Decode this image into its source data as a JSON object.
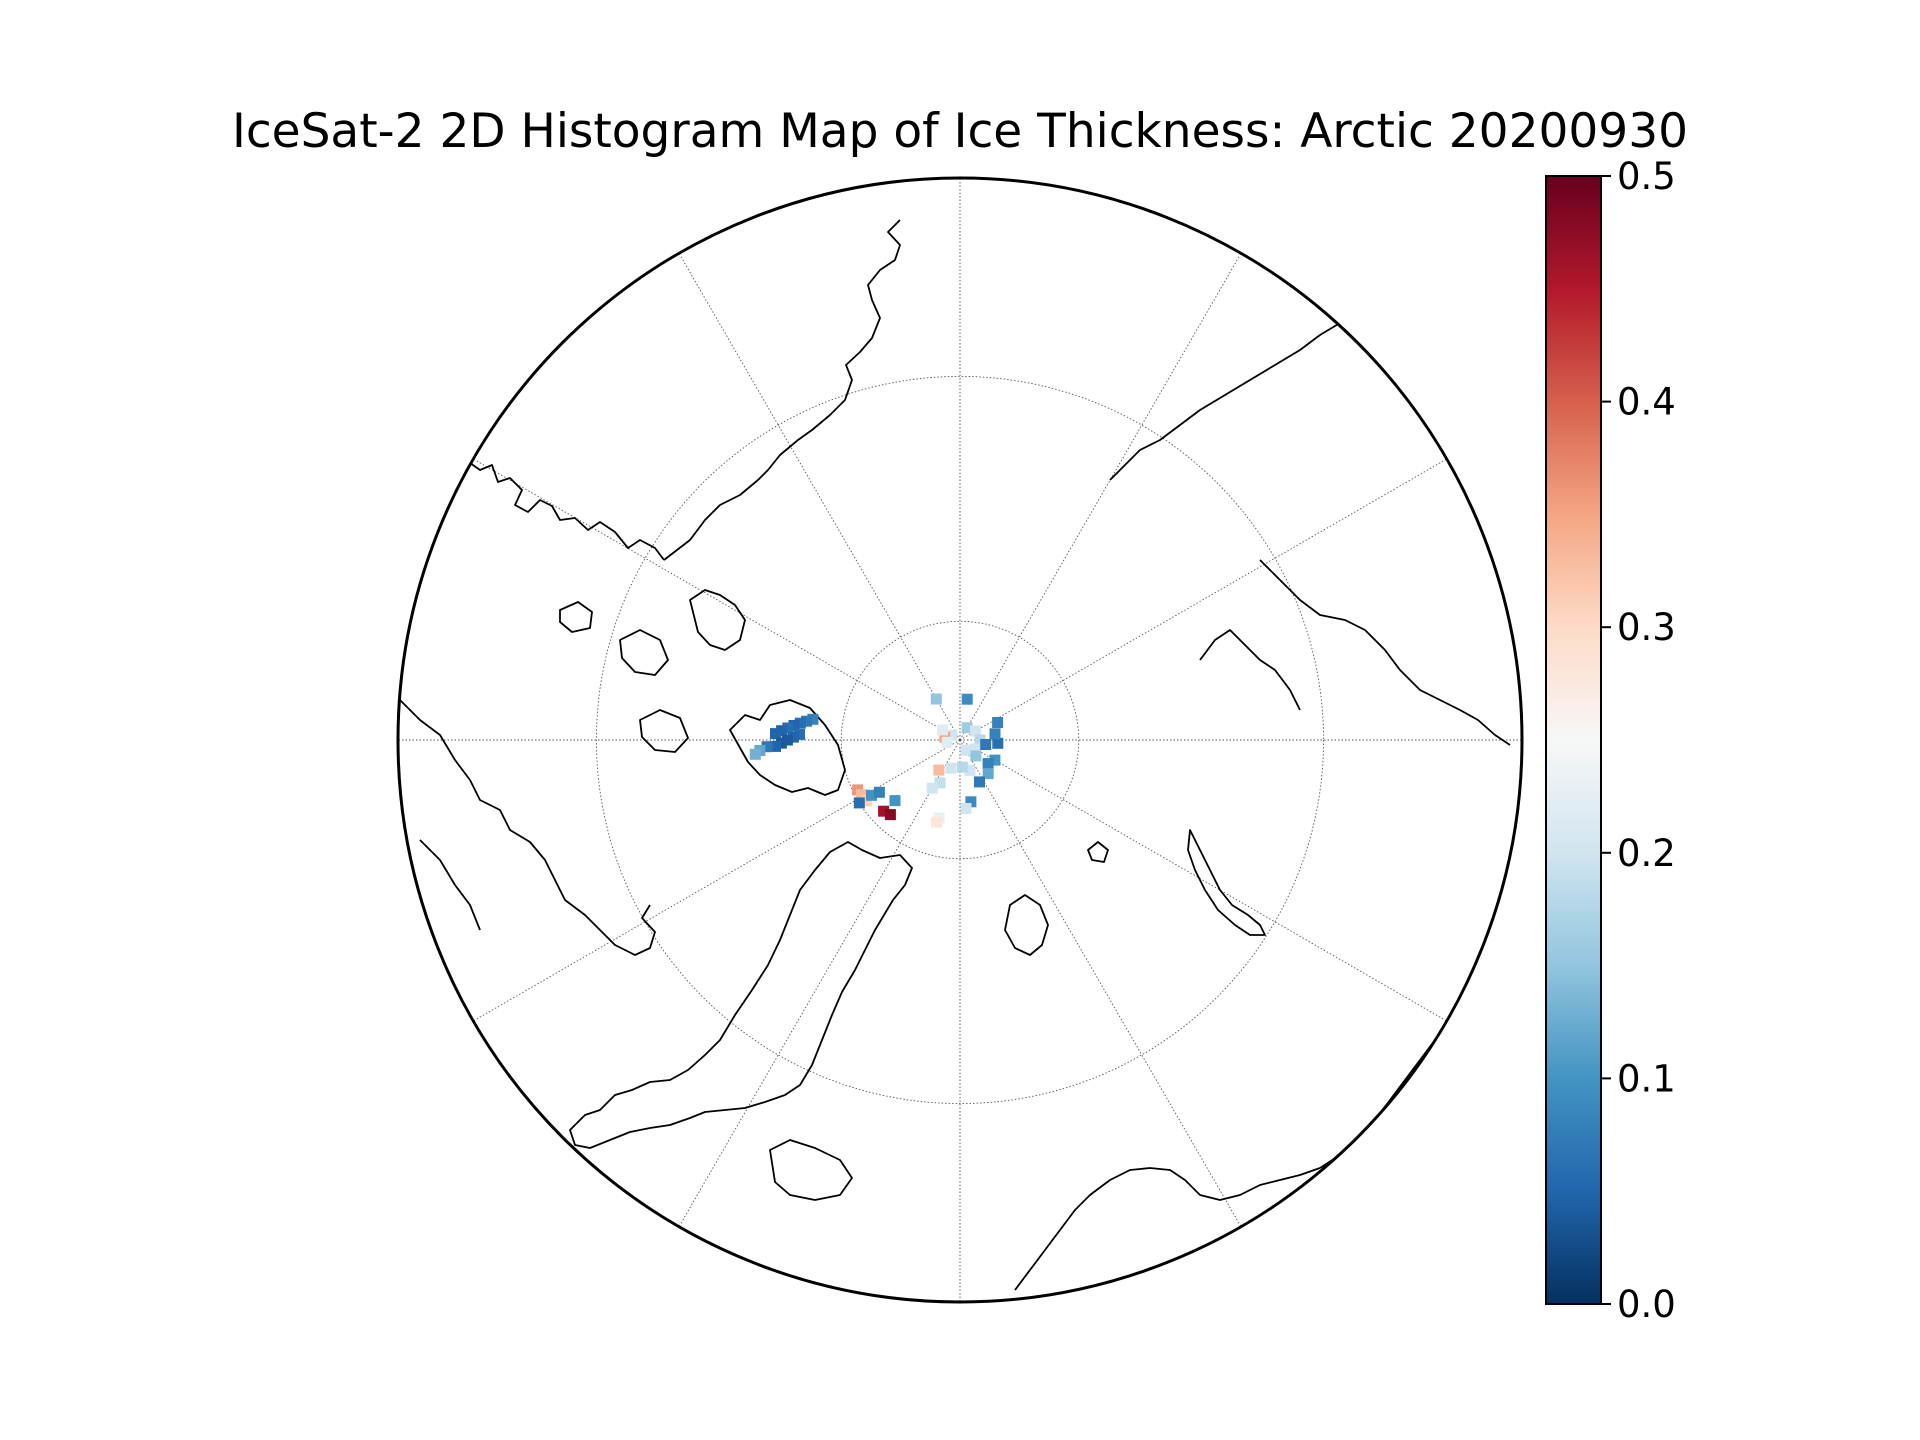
{
  "chart_data": {
    "type": "heatmap",
    "title": "IceSat-2 2D Histogram Map of Ice Thickness: Arctic 20200930",
    "projection": "north-polar-stereographic",
    "graticule": {
      "meridian_step_deg": 30,
      "parallels_deg": [
        60,
        80
      ]
    },
    "colormap": "RdBu_r",
    "colorbar": {
      "vmin": 0.0,
      "vmax": 0.5,
      "ticks": [
        0.0,
        0.1,
        0.2,
        0.3,
        0.4,
        0.5
      ],
      "tick_labels": [
        "0.0",
        "0.1",
        "0.2",
        "0.3",
        "0.4",
        "0.5"
      ],
      "placement": "right"
    },
    "cells": [
      {
        "lon": -98,
        "lat": 77.5,
        "value": 0.08
      },
      {
        "lon": -97,
        "lat": 77.0,
        "value": 0.07
      },
      {
        "lon": -96,
        "lat": 76.5,
        "value": 0.06
      },
      {
        "lon": -95,
        "lat": 76.0,
        "value": 0.05
      },
      {
        "lon": -94,
        "lat": 75.5,
        "value": 0.06
      },
      {
        "lon": -93,
        "lat": 75.0,
        "value": 0.05
      },
      {
        "lon": -92,
        "lat": 74.5,
        "value": 0.05
      },
      {
        "lon": -92,
        "lat": 76.5,
        "value": 0.06
      },
      {
        "lon": -91,
        "lat": 76.0,
        "value": 0.05
      },
      {
        "lon": -90,
        "lat": 75.5,
        "value": 0.04
      },
      {
        "lon": -89,
        "lat": 75.0,
        "value": 0.04
      },
      {
        "lon": -88,
        "lat": 74.5,
        "value": 0.05
      },
      {
        "lon": -88,
        "lat": 73.8,
        "value": 0.07
      },
      {
        "lon": -87,
        "lat": 73.2,
        "value": 0.12
      },
      {
        "lon": -86,
        "lat": 72.8,
        "value": 0.13
      },
      {
        "lon": -64,
        "lat": 80.4,
        "value": 0.36
      },
      {
        "lon": -61,
        "lat": 80.5,
        "value": 0.33
      },
      {
        "lon": -57,
        "lat": 80.6,
        "value": 0.31
      },
      {
        "lon": -58,
        "lat": 80.0,
        "value": 0.06
      },
      {
        "lon": -47,
        "lat": 81.2,
        "value": 0.46
      },
      {
        "lon": -43,
        "lat": 81.4,
        "value": 0.48
      },
      {
        "lon": -58,
        "lat": 81.2,
        "value": 0.1
      },
      {
        "lon": -57,
        "lat": 81.9,
        "value": 0.08
      },
      {
        "lon": -47,
        "lat": 82.5,
        "value": 0.1
      },
      {
        "lon": -150,
        "lat": 86.0,
        "value": 0.15
      },
      {
        "lon": 170,
        "lat": 86.5,
        "value": 0.09
      },
      {
        "lon": -120,
        "lat": 89.2,
        "value": 0.2
      },
      {
        "lon": -100,
        "lat": 88.7,
        "value": 0.35
      },
      {
        "lon": -80,
        "lat": 88.9,
        "value": 0.22
      },
      {
        "lon": -120,
        "lat": 88.3,
        "value": 0.22
      },
      {
        "lon": 150,
        "lat": 88.8,
        "value": 0.16
      },
      {
        "lon": 120,
        "lat": 88.5,
        "value": 0.2
      },
      {
        "lon": 90,
        "lat": 88.3,
        "value": 0.18
      },
      {
        "lon": 60,
        "lat": 88.5,
        "value": 0.2
      },
      {
        "lon": 30,
        "lat": 89.0,
        "value": 0.2
      },
      {
        "lon": 45,
        "lat": 88.1,
        "value": 0.15
      },
      {
        "lon": 80,
        "lat": 87.8,
        "value": 0.07
      },
      {
        "lon": 85,
        "lat": 86.8,
        "value": 0.06
      },
      {
        "lon": 100,
        "lat": 87.0,
        "value": 0.08
      },
      {
        "lon": 115,
        "lat": 86.5,
        "value": 0.08
      },
      {
        "lon": 60,
        "lat": 86.6,
        "value": 0.1
      },
      {
        "lon": 50,
        "lat": 86.9,
        "value": 0.08
      },
      {
        "lon": 40,
        "lat": 86.3,
        "value": 0.12
      },
      {
        "lon": 25,
        "lat": 86.1,
        "value": 0.07
      },
      {
        "lon": 18,
        "lat": 87.3,
        "value": 0.2
      },
      {
        "lon": -25,
        "lat": 86.0,
        "value": 0.19
      },
      {
        "lon": -18,
        "lat": 87.5,
        "value": 0.2
      },
      {
        "lon": -35,
        "lat": 86.9,
        "value": 0.33
      },
      {
        "lon": -30,
        "lat": 85.3,
        "value": 0.2
      },
      {
        "lon": 5,
        "lat": 87.7,
        "value": 0.18
      },
      {
        "lon": 10,
        "lat": 84.7,
        "value": 0.09
      },
      {
        "lon": 5,
        "lat": 84.2,
        "value": 0.2
      },
      {
        "lon": -15,
        "lat": 83.2,
        "value": 0.23
      },
      {
        "lon": -16,
        "lat": 82.8,
        "value": 0.28
      }
    ]
  }
}
